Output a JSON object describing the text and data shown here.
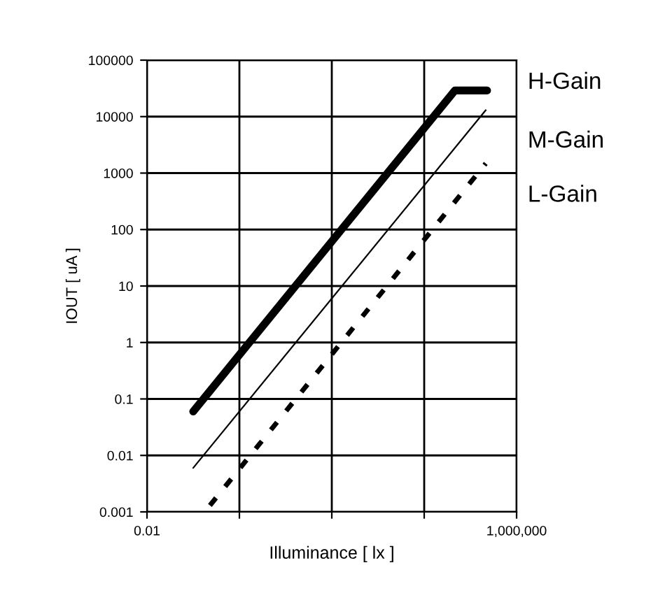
{
  "chart_data": {
    "type": "line",
    "xlabel": "Illuminance [ lx ]",
    "ylabel": "IOUT [ uA ]",
    "log": "xy",
    "xlim": [
      0.01,
      1000000
    ],
    "xticks": [
      0.01,
      {
        "value": 1,
        "label": null
      },
      {
        "value": 100,
        "label": null
      },
      {
        "value": 10000,
        "label": null
      },
      {
        "value": 1000000,
        "label": "1,000,000"
      }
    ],
    "ylim": [
      0.001,
      100000
    ],
    "yticks": [
      0.001,
      0.01,
      0.1,
      1,
      10,
      100,
      1000,
      10000,
      100000
    ],
    "grid": true,
    "legend": false,
    "series": [
      {
        "name": "H-Gain",
        "color": "#000000",
        "line_style": "solid",
        "x": [
          0.1,
          46000,
          230000
        ],
        "values": [
          0.06,
          29000,
          29000
        ]
      },
      {
        "name": "M-Gain",
        "color": "#000000",
        "line_style": "solid",
        "x": [
          0.1,
          215000
        ],
        "values": [
          0.006,
          13000
        ]
      },
      {
        "name": "L-Gain",
        "color": "#000000",
        "line_style": "dashed",
        "x": [
          0.23,
          215000
        ],
        "values": [
          0.0013,
          1480
        ]
      }
    ]
  }
}
